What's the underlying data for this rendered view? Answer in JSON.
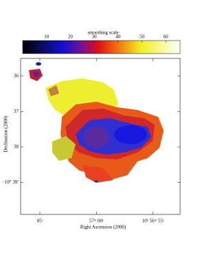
{
  "chart_data": {
    "type": "image",
    "colorbar": {
      "label": "smoothing scale",
      "clim": [
        0,
        66
      ],
      "ticks": [
        10,
        20,
        30,
        40,
        50,
        60
      ]
    },
    "xlabel": "Right Ascension (2000)",
    "ylabel": "Declination (2000)",
    "xlim": [
      6.7,
      -7.4
    ],
    "xticks": [
      {
        "value": 5,
        "label": "05ˢ"
      },
      {
        "value": 0,
        "label": "57ᵐ 00ˢ"
      },
      {
        "value": -5,
        "label": "10ʰ 56ᵐ 55ˢ"
      }
    ],
    "ylim": [
      35.5,
      39.9
    ],
    "yticks": [
      36,
      37,
      38,
      {
        "value": 39,
        "label": "−10° 39′"
      }
    ]
  }
}
